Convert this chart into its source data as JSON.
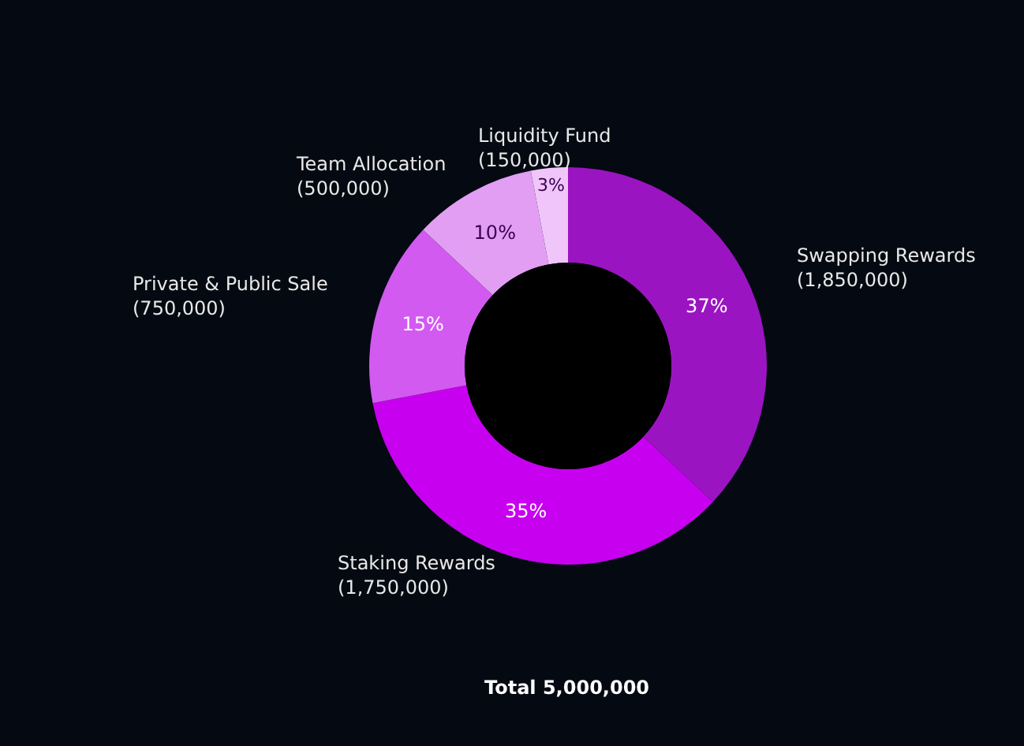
{
  "chart_data": {
    "type": "donut",
    "categories": [
      "Swapping Rewards\n(1,850,000)",
      "Staking Rewards\n(1,750,000)",
      "Private & Public Sale\n(750,000)",
      "Team Allocation\n(500,000)",
      "Liquidity Fund\n(150,000)"
    ],
    "values": [
      37,
      35,
      15,
      10,
      3
    ],
    "value_labels": [
      "37%",
      "35%",
      "15%",
      "10%",
      "3%"
    ],
    "colors": [
      "#9b14c2",
      "#c701ef",
      "#d25af0",
      "#e29ef2",
      "#f0c6fa"
    ],
    "annotations": [
      "Total 5,000,000"
    ],
    "legend": false
  }
}
